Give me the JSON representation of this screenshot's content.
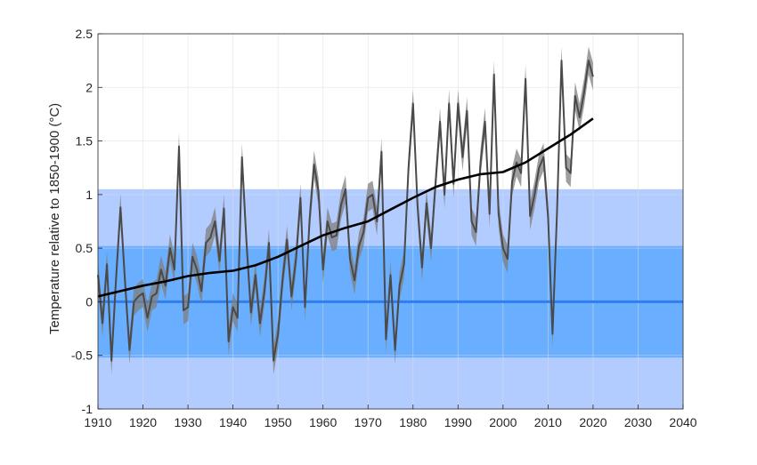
{
  "chart_data": {
    "type": "line",
    "title": "",
    "xlabel": "",
    "ylabel": "Temperature relative to 1850-1900 (°C)",
    "xlim": [
      1910,
      2040
    ],
    "ylim": [
      -1,
      2.5
    ],
    "xticks": [
      1910,
      1920,
      1930,
      1940,
      1950,
      1960,
      1970,
      1980,
      1990,
      2000,
      2010,
      2020,
      2030,
      2040
    ],
    "yticks": [
      -1,
      -0.5,
      0,
      0.5,
      1,
      1.5,
      2,
      2.5
    ],
    "grid": true,
    "bands": [
      {
        "y0": -1,
        "y1": 1.05,
        "color": "#b3ccff"
      },
      {
        "y0": -0.52,
        "y1": 0.52,
        "color": "#6aafff"
      }
    ],
    "baseline": {
      "y": 0,
      "color": "#2f7ef0"
    },
    "series_annual": {
      "color": "#4a4a4a",
      "band_color": "#7f7f7f",
      "band_half_width": 0.13,
      "x": [
        1910,
        1911,
        1912,
        1913,
        1914,
        1915,
        1916,
        1917,
        1918,
        1919,
        1920,
        1921,
        1922,
        1923,
        1924,
        1925,
        1926,
        1927,
        1928,
        1929,
        1930,
        1931,
        1932,
        1933,
        1934,
        1935,
        1936,
        1937,
        1938,
        1939,
        1940,
        1941,
        1942,
        1943,
        1944,
        1945,
        1946,
        1947,
        1948,
        1949,
        1950,
        1951,
        1952,
        1953,
        1954,
        1955,
        1956,
        1957,
        1958,
        1959,
        1960,
        1961,
        1962,
        1963,
        1964,
        1965,
        1966,
        1967,
        1968,
        1969,
        1970,
        1971,
        1972,
        1973,
        1974,
        1975,
        1976,
        1977,
        1978,
        1979,
        1980,
        1981,
        1982,
        1983,
        1984,
        1985,
        1986,
        1987,
        1988,
        1989,
        1990,
        1991,
        1992,
        1993,
        1994,
        1995,
        1996,
        1997,
        1998,
        1999,
        2000,
        2001,
        2002,
        2003,
        2004,
        2005,
        2006,
        2007,
        2008,
        2009,
        2010,
        2011,
        2012,
        2013,
        2014,
        2015,
        2016,
        2017,
        2018,
        2019,
        2020
      ],
      "y": [
        0.25,
        -0.2,
        0.35,
        -0.55,
        0.2,
        0.88,
        0.2,
        -0.45,
        0.0,
        0.05,
        0.08,
        -0.15,
        0.05,
        0.08,
        0.3,
        0.15,
        0.5,
        0.3,
        1.45,
        -0.08,
        -0.05,
        0.42,
        0.3,
        0.1,
        0.55,
        0.6,
        0.75,
        0.38,
        0.87,
        -0.37,
        -0.05,
        -0.15,
        1.35,
        0.55,
        -0.1,
        0.25,
        -0.2,
        0.1,
        0.55,
        -0.55,
        -0.3,
        0.2,
        0.58,
        0.05,
        0.4,
        0.97,
        -0.05,
        0.75,
        1.28,
        1.03,
        0.3,
        0.75,
        0.6,
        0.62,
        0.9,
        1.05,
        0.4,
        0.2,
        0.52,
        0.65,
        0.97,
        1.0,
        0.75,
        1.4,
        -0.35,
        0.25,
        -0.45,
        0.15,
        0.35,
        1.25,
        1.85,
        0.9,
        0.32,
        0.92,
        0.5,
        1.1,
        1.68,
        1.0,
        1.85,
        1.1,
        1.85,
        1.35,
        1.78,
        0.75,
        0.65,
        1.3,
        1.68,
        0.82,
        2.12,
        0.82,
        0.5,
        0.4,
        1.12,
        1.3,
        1.2,
        2.08,
        0.8,
        1.0,
        1.25,
        1.35,
        0.8,
        -0.3,
        0.85,
        2.25,
        1.25,
        1.2,
        1.92,
        1.72,
        1.95,
        2.25,
        2.1
      ]
    },
    "series_trend": {
      "color": "#000000",
      "x": [
        1910,
        1915,
        1920,
        1925,
        1930,
        1935,
        1940,
        1945,
        1950,
        1955,
        1960,
        1965,
        1970,
        1975,
        1980,
        1985,
        1990,
        1995,
        2000,
        2005,
        2010,
        2015,
        2020
      ],
      "y": [
        0.05,
        0.1,
        0.15,
        0.19,
        0.24,
        0.27,
        0.29,
        0.34,
        0.42,
        0.52,
        0.62,
        0.69,
        0.75,
        0.86,
        0.97,
        1.07,
        1.14,
        1.19,
        1.21,
        1.3,
        1.43,
        1.56,
        1.71
      ]
    }
  }
}
